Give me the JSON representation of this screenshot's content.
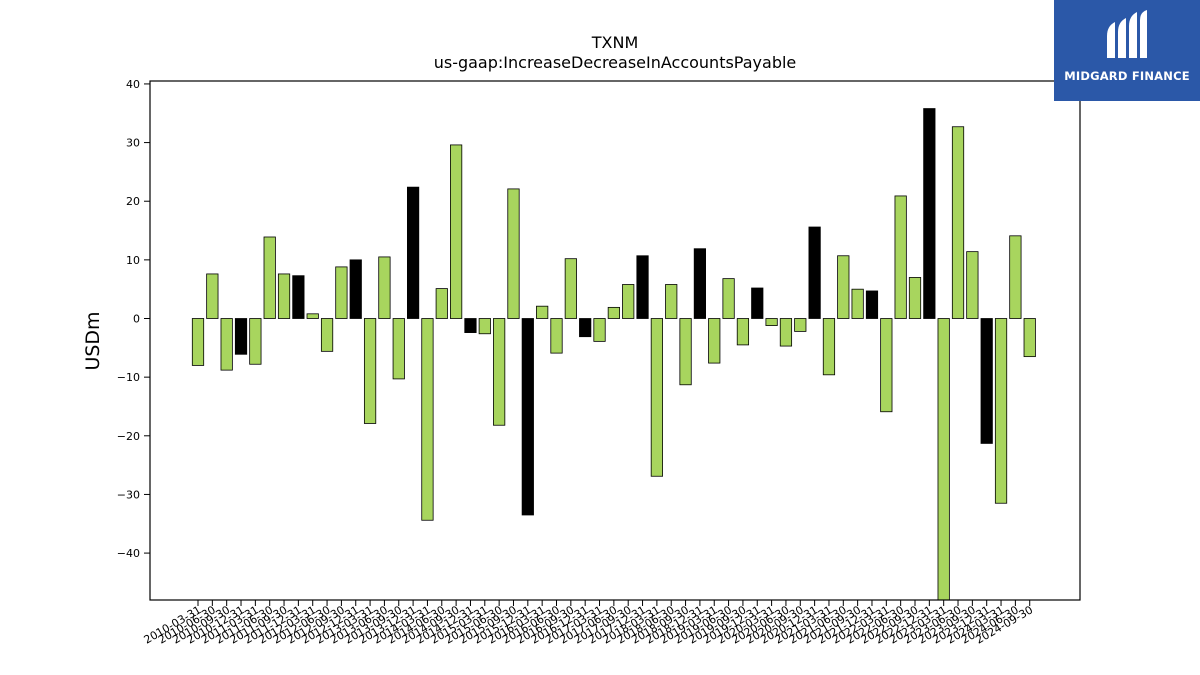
{
  "logo": {
    "text": "MIDGARD FINANCE",
    "color": "#2b58a8"
  },
  "chart_data": {
    "type": "bar",
    "title": "TXNM",
    "subtitle": "us-gaap:IncreaseDecreaseInAccountsPayable",
    "xlabel": "",
    "ylabel": "USDm",
    "ylim": [
      -48,
      40.5
    ],
    "yticks": [
      -40,
      -30,
      -20,
      -10,
      0,
      10,
      20,
      30,
      40
    ],
    "grid": false,
    "colors": {
      "default": "#a8d55e",
      "highlight": "#000000"
    },
    "categories": [
      "2010-03-31",
      "2010-06-30",
      "2010-09-30",
      "2010-12-31",
      "2011-03-31",
      "2011-06-30",
      "2011-09-30",
      "2011-12-31",
      "2012-03-31",
      "2012-06-30",
      "2012-09-30",
      "2012-12-31",
      "2013-03-31",
      "2013-06-30",
      "2013-09-30",
      "2013-12-31",
      "2014-03-31",
      "2014-06-30",
      "2014-09-30",
      "2014-12-31",
      "2015-03-31",
      "2015-06-30",
      "2015-09-30",
      "2015-12-31",
      "2016-03-31",
      "2016-06-30",
      "2016-09-30",
      "2016-12-31",
      "2017-03-31",
      "2017-06-30",
      "2017-09-30",
      "2017-12-31",
      "2018-03-31",
      "2018-06-30",
      "2018-09-30",
      "2018-12-31",
      "2019-03-31",
      "2019-06-30",
      "2019-09-30",
      "2019-12-31",
      "2020-03-31",
      "2020-06-30",
      "2020-09-30",
      "2020-12-31",
      "2021-03-31",
      "2021-06-30",
      "2021-09-30",
      "2021-12-31",
      "2022-03-31",
      "2022-06-30",
      "2022-09-30",
      "2022-12-31",
      "2023-03-31",
      "2023-06-30",
      "2023-09-30",
      "2023-12-31",
      "2024-03-31",
      "2024-06-30",
      "2024-09-30"
    ],
    "values": [
      -8.0,
      7.6,
      -8.8,
      -6.1,
      -7.8,
      13.9,
      7.6,
      7.3,
      0.8,
      -5.6,
      8.8,
      10.0,
      -17.9,
      10.5,
      -10.3,
      22.4,
      -34.4,
      5.1,
      29.6,
      -2.4,
      -2.6,
      -18.2,
      22.1,
      -33.5,
      2.1,
      -5.9,
      10.2,
      -3.1,
      -3.9,
      1.9,
      5.8,
      10.7,
      -26.9,
      5.8,
      -11.3,
      11.9,
      -7.6,
      6.8,
      -4.5,
      5.2,
      -1.2,
      -4.7,
      -2.2,
      15.6,
      -9.6,
      10.7,
      5.0,
      4.7,
      -15.9,
      20.9,
      7.0,
      35.8,
      -48.0,
      32.7,
      11.4,
      -21.3,
      -31.5,
      14.1,
      -6.5
    ],
    "highlight": [
      false,
      false,
      false,
      true,
      false,
      false,
      false,
      true,
      false,
      false,
      false,
      true,
      false,
      false,
      false,
      true,
      false,
      false,
      false,
      true,
      false,
      false,
      false,
      true,
      false,
      false,
      false,
      true,
      false,
      false,
      false,
      true,
      false,
      false,
      false,
      true,
      false,
      false,
      false,
      true,
      false,
      false,
      false,
      true,
      false,
      false,
      false,
      true,
      false,
      false,
      false,
      true,
      false,
      false,
      false,
      true,
      false,
      false,
      false
    ]
  }
}
